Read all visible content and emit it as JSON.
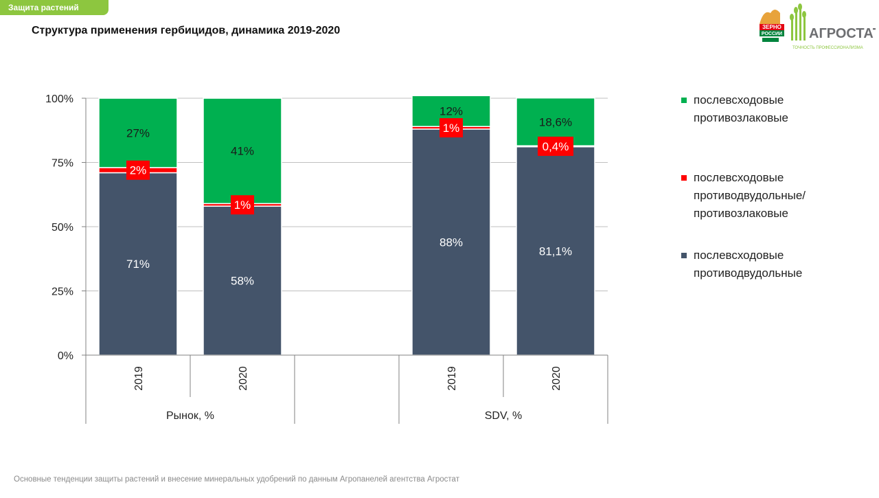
{
  "header": {
    "tag": "Защита растений",
    "title": "Структура применения гербицидов, динамика 2019-2020"
  },
  "footer": "Основные тенденции защиты растений и внесение минеральных удобрений  по данным Агропанелей агентства Агростат",
  "logo": {
    "left_top": "ЗЕРНО",
    "left_bottom": "РОССИИ",
    "right_name": "АГРОСТАТ",
    "right_slogan": "ТОЧНОСТЬ ПРОФЕССИОНАЛИЗМА"
  },
  "chart_data": {
    "type": "bar",
    "stacked": true,
    "groups": [
      {
        "name": "Рынок, %",
        "categories": [
          "2019",
          "2020"
        ]
      },
      {
        "name": "SDV, %",
        "categories": [
          "2019",
          "2020"
        ]
      }
    ],
    "y_ticks": [
      "0%",
      "25%",
      "50%",
      "75%",
      "100%"
    ],
    "ylim": [
      0,
      100
    ],
    "series": [
      {
        "name": "послевсходовые противодвудольные",
        "color": "#44546a",
        "values": [
          71,
          58,
          88,
          81.1
        ],
        "labels": [
          "71%",
          "58%",
          "88%",
          "81,1%"
        ]
      },
      {
        "name": "послевсходовые противодвудольные/ противозлаковые",
        "color": "#ff0000",
        "values": [
          2,
          1,
          1,
          0.4
        ],
        "labels": [
          "2%",
          "1%",
          "1%",
          "0,4%"
        ]
      },
      {
        "name": "послевсходовые противозлаковые",
        "color": "#00b050",
        "values": [
          27,
          41,
          12,
          18.6
        ],
        "labels": [
          "27%",
          "41%",
          "12%",
          "18,6%"
        ]
      }
    ],
    "legend": [
      {
        "text": "послевсходовые\nпротивозлаковые",
        "color": "#00b050"
      },
      {
        "text": "послевсходовые\nпротиводвудольные/\nпротивозлаковые",
        "color": "#ff0000"
      },
      {
        "text": "послевсходовые\nпротиводвудольные",
        "color": "#44546a"
      }
    ],
    "legend_position": "right",
    "grid": true
  }
}
